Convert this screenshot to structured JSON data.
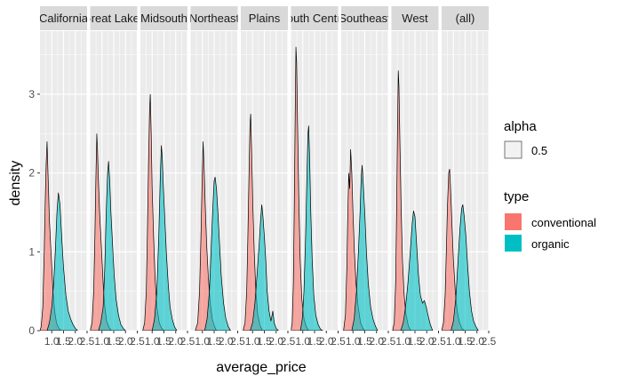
{
  "chart_data": {
    "type": "area",
    "xlabel": "average_price",
    "ylabel": "density",
    "xlim": [
      0.5,
      2.5
    ],
    "ylim": [
      0,
      3.8
    ],
    "x_ticks": [
      1.0,
      1.5,
      2.0,
      2.5
    ],
    "x_tick_labels": [
      "1.0",
      "1.5",
      "2.0",
      "2.5"
    ],
    "y_ticks": [
      0,
      1,
      2,
      3
    ],
    "y_tick_labels": [
      "0",
      "1",
      "2",
      "3"
    ],
    "grid": true,
    "legend_placement": "right",
    "facets": [
      {
        "label": "California",
        "conventional": [
          [
            0.5,
            0
          ],
          [
            0.55,
            0.05
          ],
          [
            0.62,
            0.3
          ],
          [
            0.68,
            1.0
          ],
          [
            0.72,
            1.6
          ],
          [
            0.76,
            2.1
          ],
          [
            0.8,
            2.4
          ],
          [
            0.84,
            2.0
          ],
          [
            0.9,
            1.4
          ],
          [
            0.97,
            1.0
          ],
          [
            1.05,
            0.5
          ],
          [
            1.12,
            0.25
          ],
          [
            1.2,
            0.1
          ],
          [
            1.3,
            0.03
          ],
          [
            1.4,
            0
          ]
        ],
        "organic": [
          [
            0.8,
            0
          ],
          [
            0.9,
            0.1
          ],
          [
            1.0,
            0.3
          ],
          [
            1.08,
            0.6
          ],
          [
            1.15,
            1.0
          ],
          [
            1.22,
            1.5
          ],
          [
            1.28,
            1.75
          ],
          [
            1.35,
            1.6
          ],
          [
            1.42,
            1.2
          ],
          [
            1.5,
            0.8
          ],
          [
            1.6,
            0.45
          ],
          [
            1.7,
            0.25
          ],
          [
            1.8,
            0.15
          ],
          [
            1.9,
            0.08
          ],
          [
            2.0,
            0.03
          ],
          [
            2.1,
            0
          ]
        ]
      },
      {
        "label": "Great Lakes",
        "conventional": [
          [
            0.5,
            0
          ],
          [
            0.58,
            0.1
          ],
          [
            0.65,
            0.5
          ],
          [
            0.7,
            1.2
          ],
          [
            0.74,
            1.9
          ],
          [
            0.78,
            2.5
          ],
          [
            0.81,
            2.3
          ],
          [
            0.85,
            1.9
          ],
          [
            0.9,
            1.5
          ],
          [
            0.97,
            1.1
          ],
          [
            1.05,
            0.6
          ],
          [
            1.12,
            0.3
          ],
          [
            1.2,
            0.12
          ],
          [
            1.3,
            0.04
          ],
          [
            1.4,
            0
          ]
        ],
        "organic": [
          [
            0.85,
            0
          ],
          [
            0.95,
            0.1
          ],
          [
            1.05,
            0.3
          ],
          [
            1.12,
            0.8
          ],
          [
            1.18,
            1.5
          ],
          [
            1.24,
            2.0
          ],
          [
            1.28,
            2.15
          ],
          [
            1.33,
            1.9
          ],
          [
            1.38,
            1.5
          ],
          [
            1.45,
            1.1
          ],
          [
            1.52,
            0.7
          ],
          [
            1.6,
            0.4
          ],
          [
            1.7,
            0.2
          ],
          [
            1.8,
            0.08
          ],
          [
            1.9,
            0.03
          ],
          [
            2.0,
            0
          ]
        ]
      },
      {
        "label": "Midsouth",
        "conventional": [
          [
            0.6,
            0
          ],
          [
            0.68,
            0.1
          ],
          [
            0.75,
            0.5
          ],
          [
            0.8,
            1.3
          ],
          [
            0.85,
            2.2
          ],
          [
            0.89,
            2.8
          ],
          [
            0.92,
            3.0
          ],
          [
            0.96,
            2.5
          ],
          [
            1.0,
            1.8
          ],
          [
            1.06,
            1.2
          ],
          [
            1.12,
            0.7
          ],
          [
            1.2,
            0.3
          ],
          [
            1.3,
            0.1
          ],
          [
            1.4,
            0.03
          ],
          [
            1.5,
            0
          ]
        ],
        "organic": [
          [
            1.0,
            0
          ],
          [
            1.1,
            0.15
          ],
          [
            1.2,
            0.5
          ],
          [
            1.28,
            1.2
          ],
          [
            1.34,
            1.9
          ],
          [
            1.39,
            2.35
          ],
          [
            1.43,
            2.2
          ],
          [
            1.48,
            1.8
          ],
          [
            1.54,
            1.4
          ],
          [
            1.6,
            1.0
          ],
          [
            1.68,
            0.6
          ],
          [
            1.76,
            0.3
          ],
          [
            1.85,
            0.15
          ],
          [
            1.95,
            0.05
          ],
          [
            2.05,
            0
          ]
        ]
      },
      {
        "label": "Northeast",
        "conventional": [
          [
            0.7,
            0
          ],
          [
            0.8,
            0.1
          ],
          [
            0.88,
            0.5
          ],
          [
            0.94,
            1.2
          ],
          [
            0.99,
            1.9
          ],
          [
            1.03,
            2.4
          ],
          [
            1.07,
            2.1
          ],
          [
            1.12,
            1.6
          ],
          [
            1.18,
            1.1
          ],
          [
            1.25,
            0.7
          ],
          [
            1.33,
            0.35
          ],
          [
            1.42,
            0.15
          ],
          [
            1.52,
            0.05
          ],
          [
            1.6,
            0
          ]
        ],
        "organic": [
          [
            1.1,
            0
          ],
          [
            1.2,
            0.15
          ],
          [
            1.3,
            0.5
          ],
          [
            1.38,
            1.1
          ],
          [
            1.45,
            1.6
          ],
          [
            1.5,
            1.9
          ],
          [
            1.54,
            1.95
          ],
          [
            1.6,
            1.8
          ],
          [
            1.66,
            1.5
          ],
          [
            1.73,
            1.1
          ],
          [
            1.8,
            0.7
          ],
          [
            1.9,
            0.35
          ],
          [
            2.0,
            0.15
          ],
          [
            2.1,
            0.05
          ],
          [
            2.2,
            0
          ]
        ]
      },
      {
        "label": "Plains",
        "conventional": [
          [
            0.6,
            0
          ],
          [
            0.68,
            0.1
          ],
          [
            0.75,
            0.5
          ],
          [
            0.8,
            1.2
          ],
          [
            0.85,
            2.0
          ],
          [
            0.89,
            2.6
          ],
          [
            0.92,
            2.75
          ],
          [
            0.96,
            2.3
          ],
          [
            1.01,
            1.6
          ],
          [
            1.07,
            1.0
          ],
          [
            1.14,
            0.5
          ],
          [
            1.22,
            0.2
          ],
          [
            1.32,
            0.06
          ],
          [
            1.42,
            0
          ]
        ],
        "organic": [
          [
            0.9,
            0
          ],
          [
            1.0,
            0.1
          ],
          [
            1.1,
            0.35
          ],
          [
            1.2,
            0.75
          ],
          [
            1.28,
            1.1
          ],
          [
            1.34,
            1.4
          ],
          [
            1.39,
            1.6
          ],
          [
            1.44,
            1.45
          ],
          [
            1.5,
            1.2
          ],
          [
            1.56,
            0.9
          ],
          [
            1.62,
            0.5
          ],
          [
            1.7,
            0.25
          ],
          [
            1.78,
            0.12
          ],
          [
            1.86,
            0.25
          ],
          [
            1.92,
            0.1
          ],
          [
            2.0,
            0.03
          ],
          [
            2.1,
            0
          ]
        ]
      },
      {
        "label": "South Central",
        "conventional": [
          [
            0.5,
            0
          ],
          [
            0.55,
            0.1
          ],
          [
            0.6,
            0.6
          ],
          [
            0.64,
            1.6
          ],
          [
            0.68,
            2.8
          ],
          [
            0.71,
            3.6
          ],
          [
            0.74,
            3.4
          ],
          [
            0.78,
            2.6
          ],
          [
            0.83,
            1.7
          ],
          [
            0.89,
            0.9
          ],
          [
            0.96,
            0.4
          ],
          [
            1.05,
            0.15
          ],
          [
            1.15,
            0.05
          ],
          [
            1.25,
            0
          ]
        ],
        "organic": [
          [
            0.9,
            0
          ],
          [
            0.98,
            0.15
          ],
          [
            1.05,
            0.5
          ],
          [
            1.12,
            1.2
          ],
          [
            1.18,
            2.0
          ],
          [
            1.22,
            2.5
          ],
          [
            1.25,
            2.6
          ],
          [
            1.29,
            2.2
          ],
          [
            1.34,
            1.5
          ],
          [
            1.4,
            0.9
          ],
          [
            1.47,
            0.45
          ],
          [
            1.55,
            0.2
          ],
          [
            1.65,
            0.08
          ],
          [
            1.75,
            0.02
          ],
          [
            1.85,
            0
          ]
        ]
      },
      {
        "label": "Southeast",
        "conventional": [
          [
            0.6,
            0
          ],
          [
            0.68,
            0.2
          ],
          [
            0.74,
            0.8
          ],
          [
            0.78,
            1.5
          ],
          [
            0.82,
            2.0
          ],
          [
            0.86,
            1.8
          ],
          [
            0.9,
            2.3
          ],
          [
            0.95,
            2.0
          ],
          [
            1.0,
            1.5
          ],
          [
            1.06,
            1.0
          ],
          [
            1.13,
            0.6
          ],
          [
            1.22,
            0.3
          ],
          [
            1.32,
            0.1
          ],
          [
            1.42,
            0.03
          ],
          [
            1.5,
            0
          ]
        ],
        "organic": [
          [
            0.95,
            0
          ],
          [
            1.05,
            0.15
          ],
          [
            1.15,
            0.5
          ],
          [
            1.23,
            1.0
          ],
          [
            1.3,
            1.5
          ],
          [
            1.35,
            1.95
          ],
          [
            1.39,
            2.1
          ],
          [
            1.44,
            1.85
          ],
          [
            1.5,
            1.5
          ],
          [
            1.57,
            1.0
          ],
          [
            1.65,
            0.6
          ],
          [
            1.75,
            0.3
          ],
          [
            1.85,
            0.15
          ],
          [
            1.95,
            0.06
          ],
          [
            2.05,
            0
          ]
        ]
      },
      {
        "label": "West",
        "conventional": [
          [
            0.55,
            0
          ],
          [
            0.62,
            0.1
          ],
          [
            0.68,
            0.6
          ],
          [
            0.72,
            1.5
          ],
          [
            0.76,
            2.6
          ],
          [
            0.79,
            3.3
          ],
          [
            0.82,
            3.1
          ],
          [
            0.86,
            2.4
          ],
          [
            0.91,
            1.6
          ],
          [
            0.97,
            0.9
          ],
          [
            1.04,
            0.45
          ],
          [
            1.12,
            0.2
          ],
          [
            1.22,
            0.06
          ],
          [
            1.32,
            0
          ]
        ],
        "organic": [
          [
            0.9,
            0
          ],
          [
            1.0,
            0.1
          ],
          [
            1.1,
            0.3
          ],
          [
            1.2,
            0.6
          ],
          [
            1.3,
            1.0
          ],
          [
            1.38,
            1.35
          ],
          [
            1.44,
            1.52
          ],
          [
            1.5,
            1.45
          ],
          [
            1.57,
            1.1
          ],
          [
            1.65,
            0.7
          ],
          [
            1.73,
            0.45
          ],
          [
            1.82,
            0.35
          ],
          [
            1.9,
            0.38
          ],
          [
            1.98,
            0.3
          ],
          [
            2.05,
            0.2
          ],
          [
            2.15,
            0.08
          ],
          [
            2.25,
            0
          ]
        ]
      },
      {
        "label": "(all)",
        "conventional": [
          [
            0.5,
            0
          ],
          [
            0.58,
            0.1
          ],
          [
            0.65,
            0.45
          ],
          [
            0.7,
            1.0
          ],
          [
            0.75,
            1.6
          ],
          [
            0.8,
            2.0
          ],
          [
            0.84,
            2.05
          ],
          [
            0.88,
            1.8
          ],
          [
            0.94,
            1.35
          ],
          [
            1.0,
            0.9
          ],
          [
            1.08,
            0.5
          ],
          [
            1.16,
            0.25
          ],
          [
            1.26,
            0.1
          ],
          [
            1.36,
            0.03
          ],
          [
            1.46,
            0
          ]
        ],
        "organic": [
          [
            0.9,
            0
          ],
          [
            1.0,
            0.12
          ],
          [
            1.1,
            0.4
          ],
          [
            1.2,
            0.9
          ],
          [
            1.28,
            1.3
          ],
          [
            1.35,
            1.55
          ],
          [
            1.4,
            1.6
          ],
          [
            1.46,
            1.45
          ],
          [
            1.53,
            1.2
          ],
          [
            1.6,
            0.85
          ],
          [
            1.68,
            0.5
          ],
          [
            1.77,
            0.25
          ],
          [
            1.86,
            0.12
          ],
          [
            1.96,
            0.05
          ],
          [
            2.06,
            0
          ]
        ]
      }
    ],
    "legends": [
      {
        "title": "alpha",
        "entries": [
          {
            "label": "0.5",
            "color": "#f2f2f2"
          }
        ]
      },
      {
        "title": "type",
        "entries": [
          {
            "label": "conventional",
            "color": "#F8766D"
          },
          {
            "label": "organic",
            "color": "#00BFC4"
          }
        ]
      }
    ],
    "colors": {
      "conventional": "#F8766D",
      "organic": "#00BFC4",
      "panel_bg": "#EBEBEB",
      "strip_bg": "#D9D9D9"
    }
  }
}
